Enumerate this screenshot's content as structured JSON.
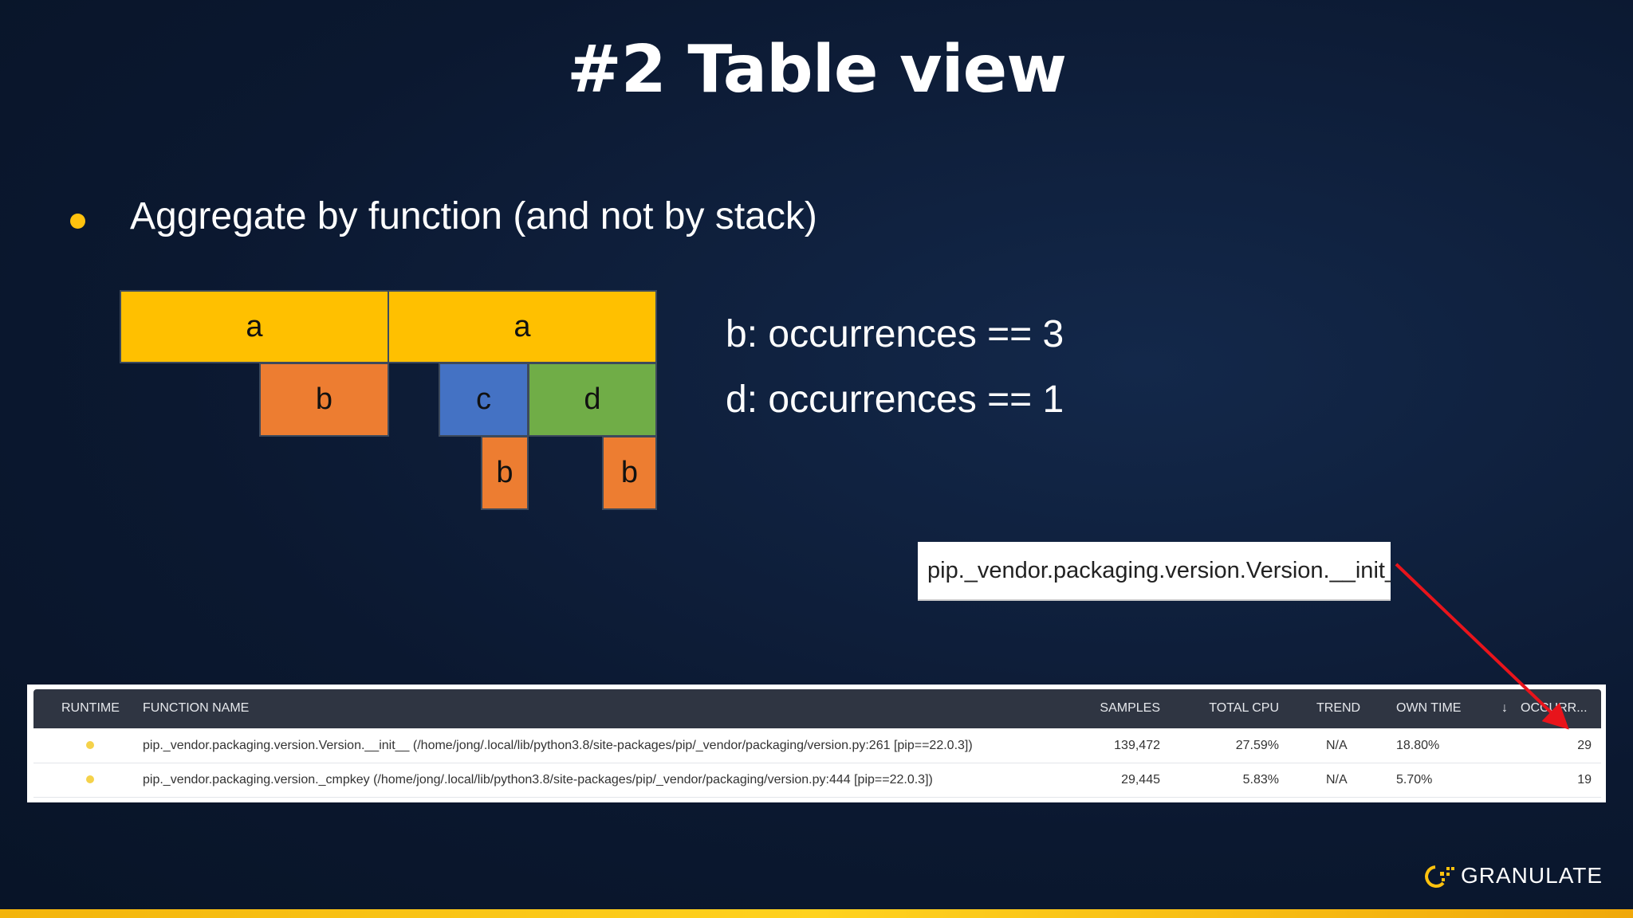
{
  "header": {
    "title": "#2 Table view"
  },
  "bullet": "Aggregate by function (and not by stack)",
  "diagram": {
    "nodes": [
      {
        "label": "a"
      },
      {
        "label": "a"
      },
      {
        "label": "b"
      },
      {
        "label": "c"
      },
      {
        "label": "d"
      },
      {
        "label": "b"
      },
      {
        "label": "b"
      }
    ]
  },
  "notes": [
    "b: occurrences == 3",
    "d: occurrences == 1"
  ],
  "tooltip": "pip._vendor.packaging.version.Version.__init__",
  "table": {
    "columns": [
      "RUNTIME",
      "FUNCTION NAME",
      "SAMPLES",
      "TOTAL CPU",
      "TREND",
      "OWN TIME",
      "OCCURR..."
    ],
    "rows": [
      [
        "pip._vendor.packaging.version.Version.__init__ (/home/jong/.local/lib/python3.8/site-packages/pip/_vendor/packaging/version.py:261 [pip==22.0.3])",
        "139,472",
        "27.59%",
        "N/A",
        "18.80%",
        "29"
      ],
      [
        "pip._vendor.packaging.version._cmpkey (/home/jong/.local/lib/python3.8/site-packages/pip/_vendor/packaging/version.py:444 [pip==22.0.3])",
        "29,445",
        "5.83%",
        "N/A",
        "5.70%",
        "19"
      ]
    ]
  },
  "logo": "GRANULATE"
}
